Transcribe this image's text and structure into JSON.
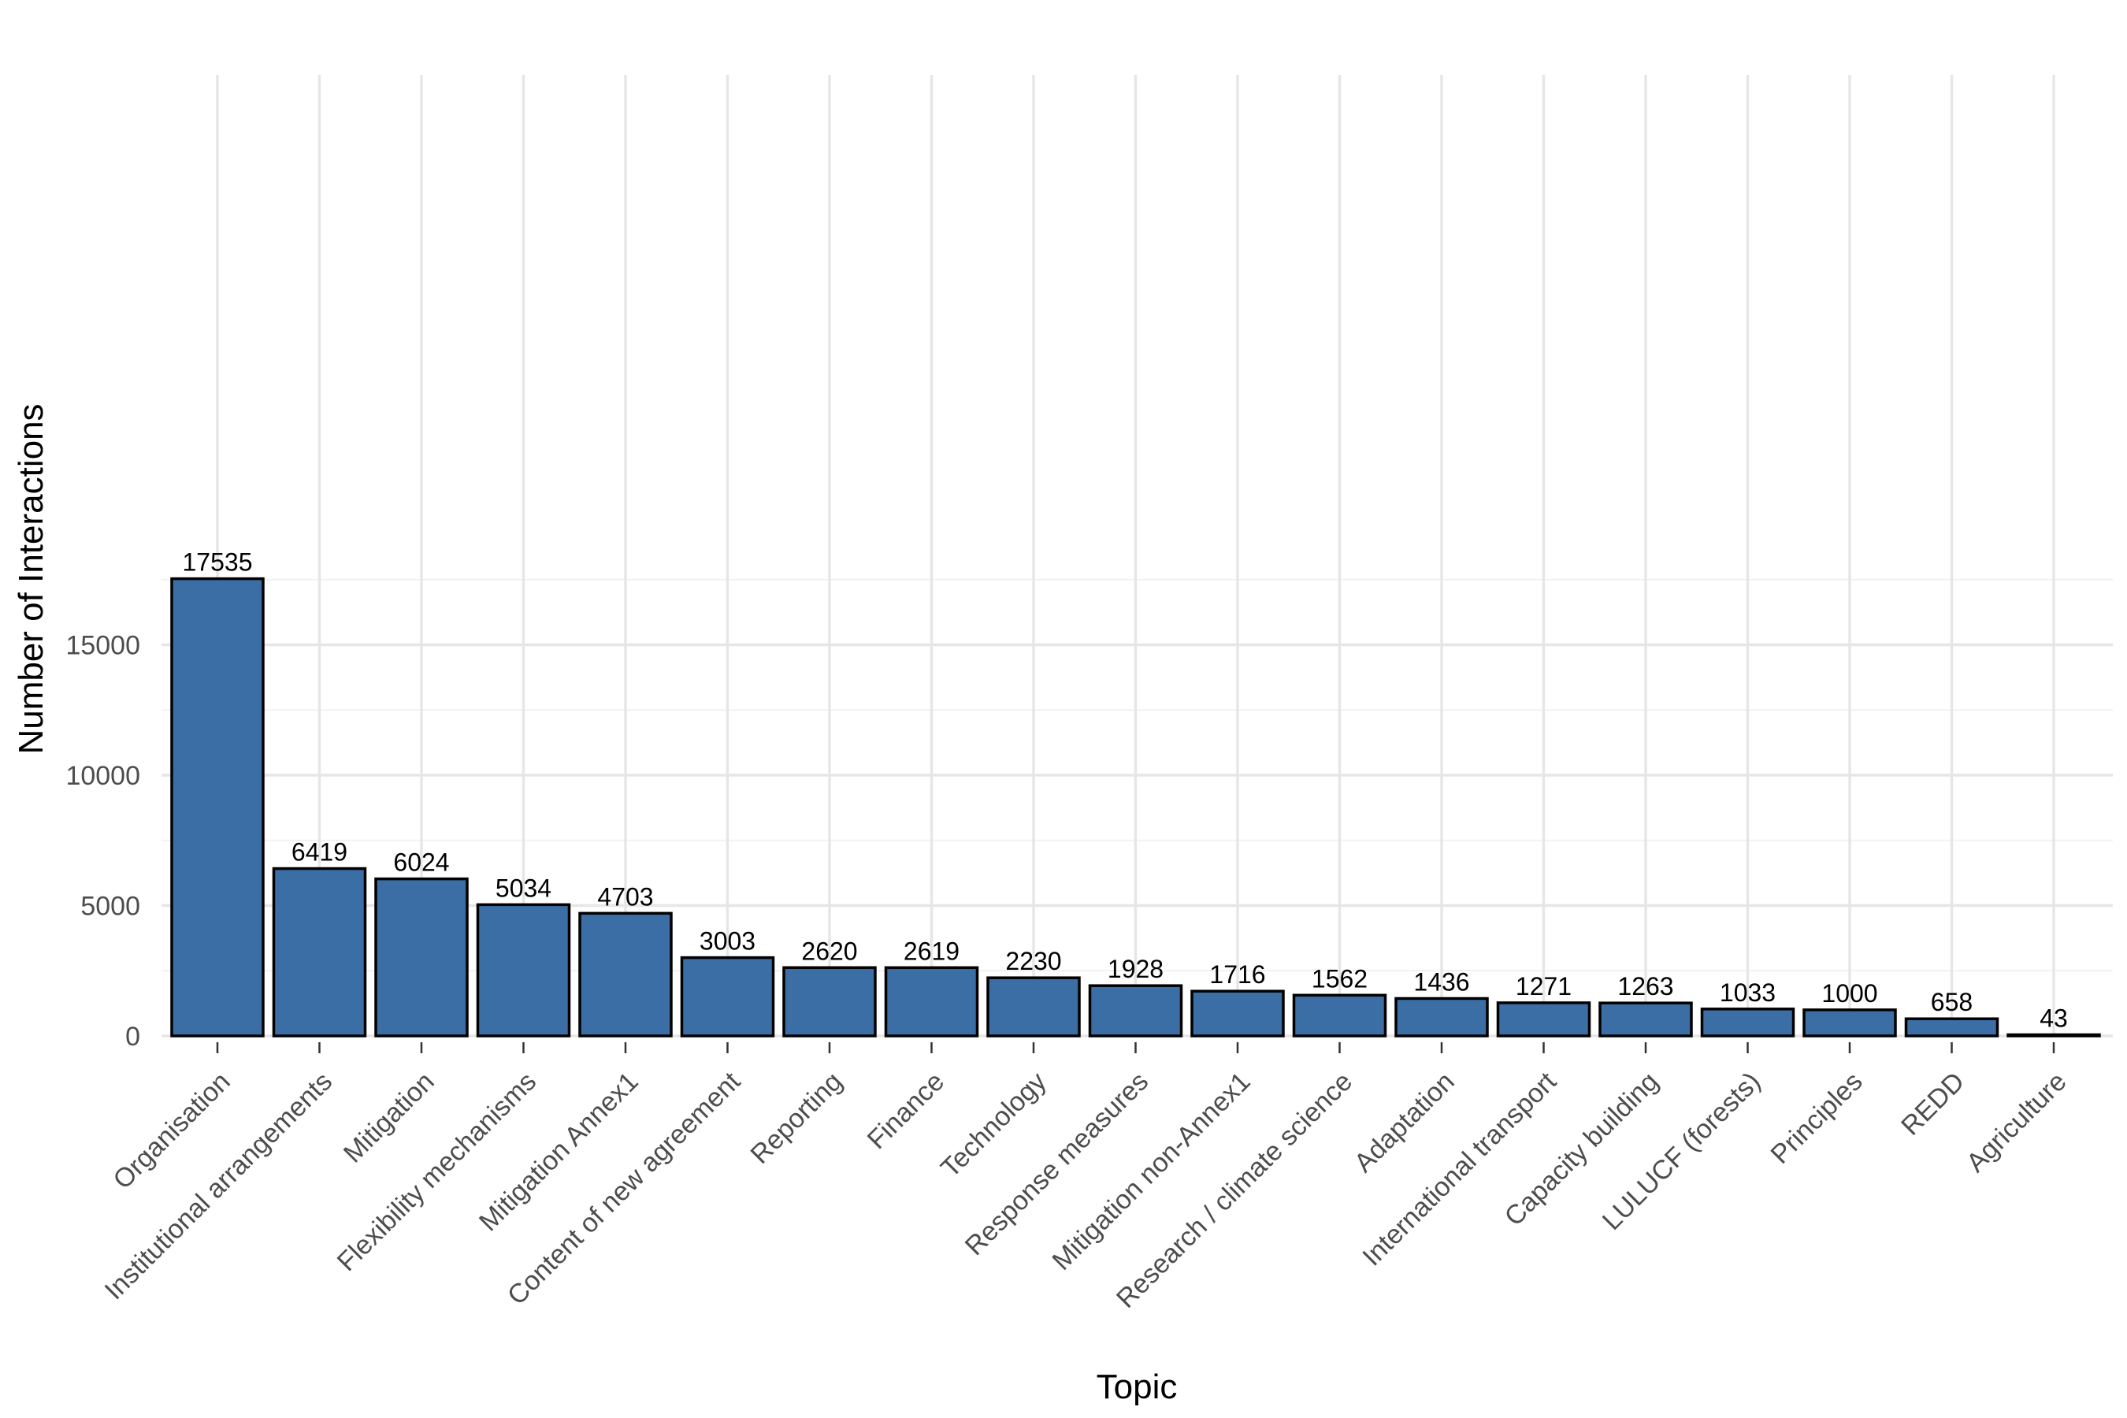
{
  "chart_data": {
    "type": "bar",
    "title": "",
    "xlabel": "Topic",
    "ylabel": "Number of Interactions",
    "categories": [
      "Organisation",
      "Institutional arrangements",
      "Mitigation",
      "Flexibility mechanisms",
      "Mitigation Annex1",
      "Content of new agreement",
      "Reporting",
      "Finance",
      "Technology",
      "Response measures",
      "Mitigation non-Annex1",
      "Research / climate science",
      "Adaptation",
      "International transport",
      "Capacity building",
      "LULUCF (forests)",
      "Principles",
      "REDD",
      "Agriculture"
    ],
    "values": [
      17535,
      6419,
      6024,
      5034,
      4703,
      3003,
      2620,
      2619,
      2230,
      1928,
      1716,
      1562,
      1436,
      1271,
      1263,
      1033,
      1000,
      658,
      43
    ],
    "ylim": [
      0,
      18000
    ],
    "yticks": [
      0,
      5000,
      10000,
      15000
    ],
    "grid": true,
    "legend": "none",
    "colors": {
      "bar_fill": "#3a6ea5",
      "bar_stroke": "#000000"
    }
  }
}
